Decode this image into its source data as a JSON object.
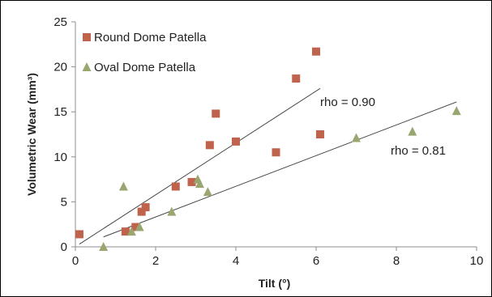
{
  "chart_data": {
    "type": "scatter",
    "xlabel": "Tilt (°)",
    "ylabel": "Volumetric Wear (mm³)",
    "xlim": [
      0,
      10
    ],
    "ylim": [
      0,
      25
    ],
    "xticks": [
      0,
      2,
      4,
      6,
      8,
      10
    ],
    "yticks": [
      0,
      5,
      10,
      15,
      20,
      25
    ],
    "grid": false,
    "legend_position": "top-left",
    "series": [
      {
        "name": "Round Dome Patella",
        "marker": "square",
        "color": "#c0634d",
        "points": [
          [
            0.1,
            1.4
          ],
          [
            1.25,
            1.7
          ],
          [
            1.5,
            2.2
          ],
          [
            1.65,
            3.9
          ],
          [
            1.75,
            4.4
          ],
          [
            2.5,
            6.7
          ],
          [
            2.9,
            7.2
          ],
          [
            3.35,
            11.3
          ],
          [
            3.5,
            14.8
          ],
          [
            4.0,
            11.7
          ],
          [
            5.0,
            10.5
          ],
          [
            5.5,
            18.7
          ],
          [
            6.0,
            21.7
          ],
          [
            6.1,
            12.5
          ]
        ],
        "trendline": {
          "x": [
            0.1,
            6.1
          ],
          "y": [
            0.3,
            17.6
          ]
        },
        "annotation": "rho = 0.90"
      },
      {
        "name": "Oval Dome Patella",
        "marker": "triangle",
        "color": "#9aa66f",
        "points": [
          [
            0.7,
            0.0
          ],
          [
            1.2,
            6.7
          ],
          [
            1.4,
            1.7
          ],
          [
            1.6,
            2.2
          ],
          [
            2.4,
            3.9
          ],
          [
            3.05,
            7.5
          ],
          [
            3.1,
            7.0
          ],
          [
            3.3,
            6.1
          ],
          [
            7.0,
            12.1
          ],
          [
            8.4,
            12.8
          ],
          [
            9.5,
            15.1
          ]
        ],
        "trendline": {
          "x": [
            0.7,
            9.5
          ],
          "y": [
            1.1,
            16.1
          ]
        },
        "annotation": "rho = 0.81"
      }
    ],
    "trendline_color": "#444444"
  }
}
